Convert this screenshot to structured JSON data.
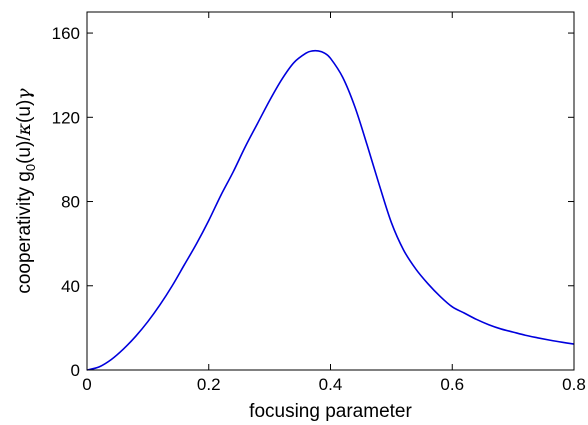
{
  "chart_data": {
    "type": "line",
    "title": "",
    "xlabel": "focusing parameter",
    "ylabel": {
      "prefix": "cooperativity g",
      "sub": "0",
      "mid": "(u)/",
      "kappa": "κ",
      "suffix": "(u)",
      "gamma": "γ"
    },
    "xlim": [
      0,
      0.8
    ],
    "ylim": [
      0,
      170
    ],
    "xticks": [
      0,
      0.2,
      0.4,
      0.6,
      0.8
    ],
    "xtick_labels": [
      "0",
      "0.2",
      "0.4",
      "0.6",
      "0.8"
    ],
    "yticks": [
      0,
      40,
      80,
      120,
      160
    ],
    "ytick_labels": [
      "0",
      "40",
      "80",
      "120",
      "160"
    ],
    "grid": false,
    "legend": "none",
    "series": [
      {
        "color": "#0000dd",
        "x": [
          0,
          0.02,
          0.04,
          0.06,
          0.08,
          0.1,
          0.12,
          0.14,
          0.16,
          0.18,
          0.2,
          0.22,
          0.24,
          0.26,
          0.28,
          0.3,
          0.32,
          0.34,
          0.36,
          0.37,
          0.38,
          0.39,
          0.4,
          0.42,
          0.44,
          0.46,
          0.48,
          0.5,
          0.52,
          0.54,
          0.56,
          0.58,
          0.6,
          0.62,
          0.64,
          0.66,
          0.68,
          0.7,
          0.72,
          0.74,
          0.76,
          0.78,
          0.8
        ],
        "y": [
          0,
          1.5,
          5,
          10,
          16,
          23,
          31,
          40,
          50,
          60,
          71,
          83,
          94,
          106,
          117,
          128,
          138,
          146,
          150.5,
          151.5,
          151.5,
          150.5,
          148,
          139,
          125,
          107,
          88,
          70,
          57,
          48,
          41,
          35,
          30,
          27,
          24,
          21.5,
          19.5,
          18,
          16.5,
          15.3,
          14.2,
          13.2,
          12.3
        ]
      }
    ]
  }
}
